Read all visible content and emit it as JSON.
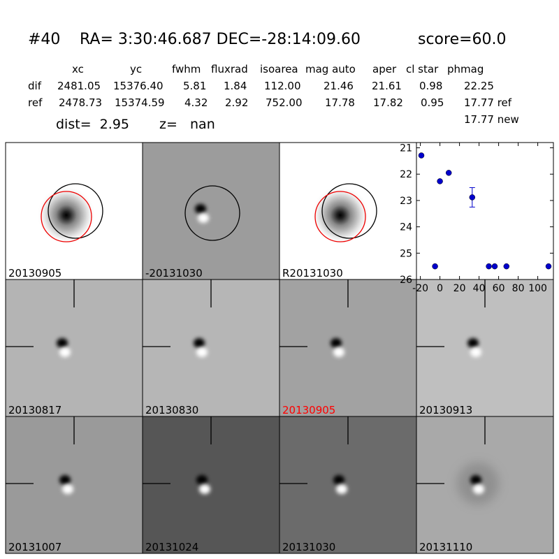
{
  "header": {
    "object": "#40",
    "coords": "RA= 3:30:46.687 DEC=-28:14:09.60",
    "score": "score=60.0",
    "columns": [
      "xc",
      "yc",
      "fwhm",
      "fluxrad",
      "isoarea",
      "mag auto",
      "aper",
      "cl star",
      "phmag"
    ],
    "rows": [
      {
        "label": "dif",
        "values": [
          "2481.05",
          "15376.40",
          "5.81",
          "1.84",
          "112.00",
          "21.46",
          "21.61",
          "0.98",
          "22.25"
        ]
      },
      {
        "label": "ref",
        "values": [
          "2478.73",
          "15374.59",
          "4.32",
          "2.92",
          "752.00",
          "17.78",
          "17.82",
          "0.95",
          "17.77 ref"
        ]
      }
    ],
    "extra": "17.77 new",
    "dist": "dist=  2.95",
    "z": "z=   nan"
  },
  "panels": [
    {
      "label": "20130905",
      "label_color": "#000000"
    },
    {
      "label": "-20131030",
      "label_color": "#000000"
    },
    {
      "label": "R20131030",
      "label_color": "#000000"
    },
    {
      "label": "20130817",
      "label_color": "#000000"
    },
    {
      "label": "20130830",
      "label_color": "#000000"
    },
    {
      "label": "20130905",
      "label_color": "#ff0000"
    },
    {
      "label": "20130913",
      "label_color": "#000000"
    },
    {
      "label": "20131007",
      "label_color": "#000000"
    },
    {
      "label": "20131024",
      "label_color": "#000000"
    },
    {
      "label": "20131030",
      "label_color": "#000000"
    },
    {
      "label": "20131110",
      "label_color": "#000000"
    }
  ],
  "chart_data": {
    "type": "scatter",
    "x": [
      -19,
      -5,
      0,
      9,
      33,
      50,
      56,
      68,
      111
    ],
    "values": [
      21.29,
      25.5,
      22.27,
      21.95,
      22.88,
      25.5,
      25.5,
      25.5,
      25.5
    ],
    "errors": [
      null,
      null,
      null,
      null,
      0.37,
      null,
      null,
      null,
      null
    ],
    "color": "#0000cc",
    "xlim": [
      -24,
      116
    ],
    "ylim": [
      20.8,
      26
    ],
    "y_inverted": true,
    "xticks": [
      -20,
      0,
      20,
      40,
      60,
      80,
      100
    ],
    "yticks": [
      21,
      22,
      23,
      24,
      25,
      26
    ]
  }
}
